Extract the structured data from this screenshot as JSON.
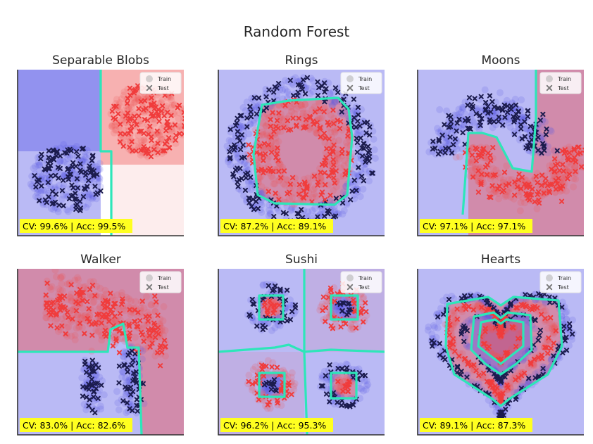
{
  "figure": {
    "suptitle": "Random Forest",
    "legend": {
      "train_label": "Train",
      "test_label": "Test",
      "placement": "upper right"
    }
  },
  "colors": {
    "class0": "#1c1c4e",
    "class1": "#f03c3c",
    "region0": "#5a5ae6",
    "region1": "#ee5252",
    "boundary": "#2de6b9",
    "score_box": "#ffff20",
    "axis": "#333333"
  },
  "chart_data": [
    {
      "type": "scatter",
      "title": "Separable Blobs",
      "score": "CV: 99.6% | Acc: 99.5%",
      "cv": 99.6,
      "acc": 99.5,
      "xlim": [
        0,
        1
      ],
      "ylim": [
        0,
        1
      ],
      "grid": false,
      "classes": [
        "Train",
        "Test"
      ]
    },
    {
      "type": "scatter",
      "title": "Rings",
      "score": "CV: 87.2% | Acc: 89.1%",
      "cv": 87.2,
      "acc": 89.1,
      "xlim": [
        0,
        1
      ],
      "ylim": [
        0,
        1
      ],
      "grid": false,
      "classes": [
        "Train",
        "Test"
      ]
    },
    {
      "type": "scatter",
      "title": "Moons",
      "score": "CV: 97.1% | Acc: 97.1%",
      "cv": 97.1,
      "acc": 97.1,
      "xlim": [
        0,
        1
      ],
      "ylim": [
        0,
        1
      ],
      "grid": false,
      "classes": [
        "Train",
        "Test"
      ]
    },
    {
      "type": "scatter",
      "title": "Walker",
      "score": "CV: 83.0% | Acc: 82.6%",
      "cv": 83.0,
      "acc": 82.6,
      "xlim": [
        0,
        1
      ],
      "ylim": [
        0,
        1
      ],
      "grid": false,
      "classes": [
        "Train",
        "Test"
      ]
    },
    {
      "type": "scatter",
      "title": "Sushi",
      "score": "CV: 96.2% | Acc: 95.3%",
      "cv": 96.2,
      "acc": 95.3,
      "xlim": [
        0,
        1
      ],
      "ylim": [
        0,
        1
      ],
      "grid": false,
      "classes": [
        "Train",
        "Test"
      ]
    },
    {
      "type": "scatter",
      "title": "Hearts",
      "score": "CV: 89.1% | Acc: 87.3%",
      "cv": 89.1,
      "acc": 87.3,
      "xlim": [
        0,
        1
      ],
      "ylim": [
        0,
        1
      ],
      "grid": false,
      "classes": [
        "Train",
        "Test"
      ]
    }
  ]
}
